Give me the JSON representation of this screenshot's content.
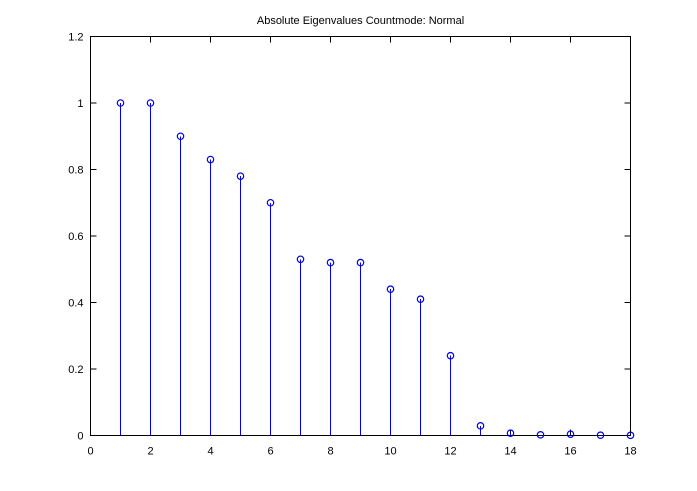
{
  "figure": {
    "background": "#ffffff"
  },
  "chart_data": {
    "type": "stem",
    "title": "Absolute Eigenvalues Countmode: Normal",
    "xlabel": "",
    "ylabel": "",
    "x": [
      1,
      2,
      3,
      4,
      5,
      6,
      7,
      8,
      9,
      10,
      11,
      12,
      13,
      14,
      15,
      16,
      17,
      18
    ],
    "values": [
      1.0,
      1.0,
      0.9,
      0.83,
      0.78,
      0.7,
      0.53,
      0.52,
      0.52,
      0.44,
      0.41,
      0.24,
      0.029,
      0.007,
      0.002,
      0.004,
      0.001,
      0.0005
    ],
    "xlim": [
      0,
      18
    ],
    "ylim": [
      0,
      1.2
    ],
    "xticks": [
      0,
      2,
      4,
      6,
      8,
      10,
      12,
      14,
      16,
      18
    ],
    "xtick_labels": [
      "0",
      "2",
      "4",
      "6",
      "8",
      "10",
      "12",
      "14",
      "16",
      "18"
    ],
    "yticks": [
      0,
      0.2,
      0.4,
      0.6,
      0.8,
      1,
      1.2
    ],
    "ytick_labels": [
      "0",
      "0.2",
      "0.4",
      "0.6",
      "0.8",
      "1",
      "1.2"
    ],
    "grid": false,
    "box": true,
    "legend": null,
    "marker": "open-circle",
    "colors": {
      "stem": "#0000EE",
      "axis": "#000000",
      "text": "#000000",
      "background": "#ffffff"
    }
  }
}
